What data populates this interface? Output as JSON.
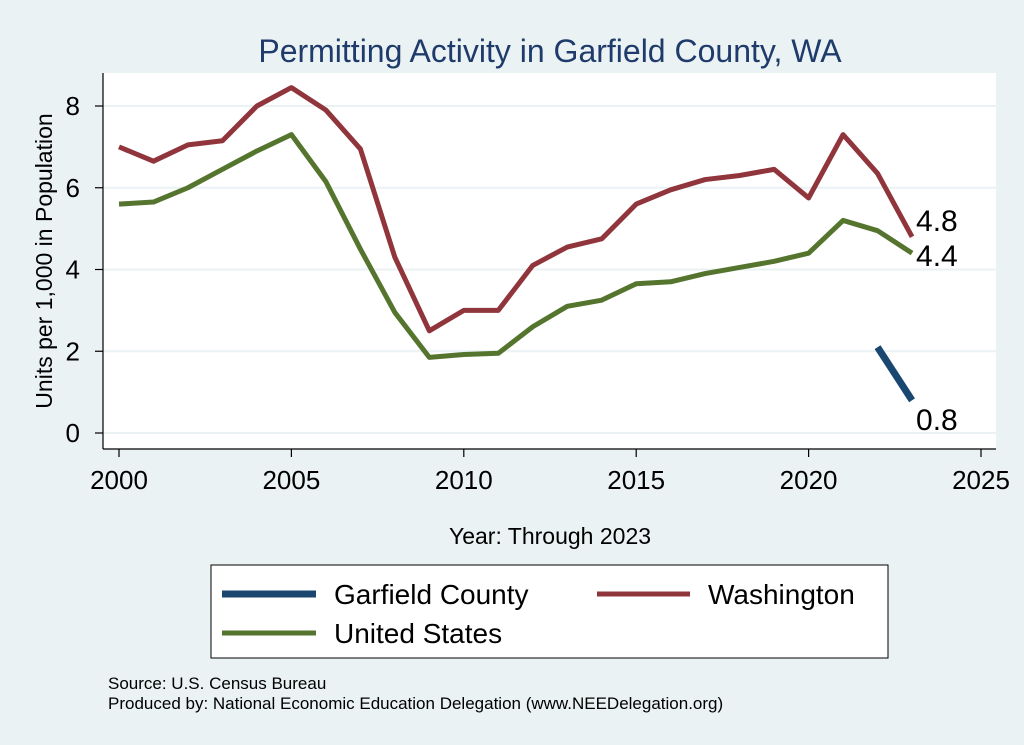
{
  "chart_data": {
    "type": "line",
    "title": "Permitting Activity in Garfield County, WA",
    "xlabel": "Year: Through 2023",
    "ylabel": "Units per 1,000 in Population",
    "xlim": [
      2000,
      2025
    ],
    "ylim": [
      0,
      8.8
    ],
    "x_ticks": [
      2000,
      2005,
      2010,
      2015,
      2020,
      2025
    ],
    "y_ticks": [
      0,
      2,
      4,
      6,
      8
    ],
    "grid": true,
    "colors": {
      "garfield": "#1a476f",
      "washington": "#90353b",
      "us": "#55752f"
    },
    "series": [
      {
        "key": "garfield",
        "name": "Garfield County",
        "x": [
          2022,
          2023
        ],
        "values": [
          2.1,
          0.8
        ],
        "end_label": "0.8"
      },
      {
        "key": "washington",
        "name": "Washington",
        "x": [
          2000,
          2001,
          2002,
          2003,
          2004,
          2005,
          2006,
          2007,
          2008,
          2009,
          2010,
          2011,
          2012,
          2013,
          2014,
          2015,
          2016,
          2017,
          2018,
          2019,
          2020,
          2021,
          2022,
          2023
        ],
        "values": [
          7.0,
          6.65,
          7.05,
          7.15,
          8.0,
          8.45,
          7.9,
          6.95,
          4.3,
          2.5,
          3.0,
          3.0,
          4.1,
          4.55,
          4.75,
          5.6,
          5.95,
          6.2,
          6.3,
          6.45,
          5.75,
          7.3,
          6.35,
          4.8
        ],
        "end_label": "4.8"
      },
      {
        "key": "us",
        "name": "United States",
        "x": [
          2000,
          2001,
          2002,
          2003,
          2004,
          2005,
          2006,
          2007,
          2008,
          2009,
          2010,
          2011,
          2012,
          2013,
          2014,
          2015,
          2016,
          2017,
          2018,
          2019,
          2020,
          2021,
          2022,
          2023
        ],
        "values": [
          5.6,
          5.65,
          6.0,
          6.45,
          6.9,
          7.3,
          6.15,
          4.5,
          2.95,
          1.85,
          1.92,
          1.95,
          2.6,
          3.1,
          3.25,
          3.65,
          3.7,
          3.9,
          4.05,
          4.2,
          4.4,
          5.2,
          4.95,
          4.4
        ],
        "end_label": "4.4"
      }
    ],
    "legend": [
      "Garfield County",
      "Washington",
      "United States"
    ]
  },
  "footer": {
    "source": "Source: U.S. Census Bureau",
    "produced_by": "Produced by: National Economic Education Delegation (www.NEEDelegation.org)"
  }
}
